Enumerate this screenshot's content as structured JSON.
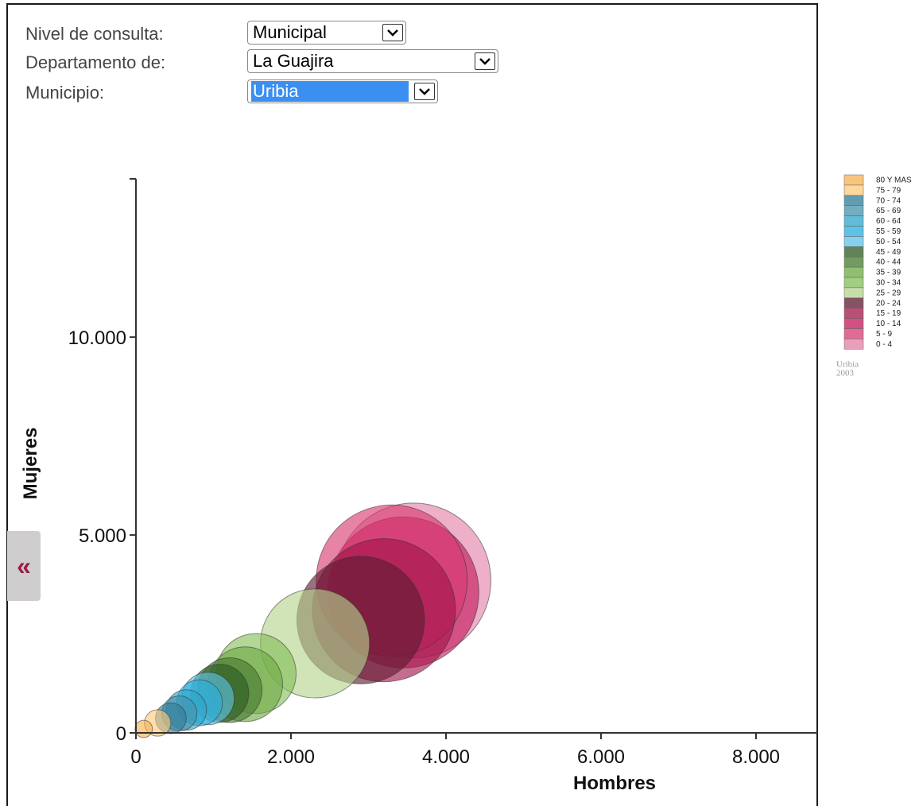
{
  "form": {
    "nivel_label": "Nivel de consulta:",
    "nivel_value": "Municipal",
    "departamento_label": "Departamento de:",
    "departamento_value": "La Guajira",
    "municipio_label": "Municipio:",
    "municipio_value": "Uribia"
  },
  "collapse_button_label": "«",
  "chart_data": {
    "type": "scatter",
    "variant": "bubble",
    "xlabel": "Hombres",
    "ylabel": "Mujeres",
    "xlim": [
      0,
      8800
    ],
    "ylim": [
      0,
      14000
    ],
    "x_ticks": [
      0,
      2000,
      4000,
      6000,
      8000
    ],
    "x_tick_labels": [
      "0",
      "2.000",
      "4.000",
      "6.000",
      "8.000"
    ],
    "y_ticks": [
      0,
      5000,
      10000
    ],
    "y_tick_labels": [
      "0",
      "5.000",
      "10.000"
    ],
    "grid": false,
    "legend_position": "right",
    "legend_caption": [
      "Uribia",
      "2003"
    ],
    "series": [
      {
        "name": "80 Y MAS",
        "color": "#f7b251",
        "x": 100,
        "y": 100,
        "size": 130
      },
      {
        "name": "75 - 79",
        "color": "#fcc979",
        "x": 280,
        "y": 250,
        "size": 300
      },
      {
        "name": "70 - 74",
        "color": "#2f7b96",
        "x": 450,
        "y": 370,
        "size": 410
      },
      {
        "name": "65 - 69",
        "color": "#4392ab",
        "x": 560,
        "y": 490,
        "size": 530
      },
      {
        "name": "60 - 64",
        "color": "#2ea5c9",
        "x": 650,
        "y": 580,
        "size": 700
      },
      {
        "name": "55 - 59",
        "color": "#27aedf",
        "x": 820,
        "y": 760,
        "size": 900
      },
      {
        "name": "50 - 54",
        "color": "#5cc3e8",
        "x": 930,
        "y": 870,
        "size": 1180
      },
      {
        "name": "45 - 49",
        "color": "#2d5a23",
        "x": 1080,
        "y": 1000,
        "size": 1450
      },
      {
        "name": "40 - 44",
        "color": "#44782e",
        "x": 1210,
        "y": 1080,
        "size": 1800
      },
      {
        "name": "35 - 39",
        "color": "#6da843",
        "x": 1410,
        "y": 1230,
        "size": 2400
      },
      {
        "name": "30 - 34",
        "color": "#82be55",
        "x": 1550,
        "y": 1500,
        "size": 2750
      },
      {
        "name": "25 - 29",
        "color": "#b3d48c",
        "x": 2310,
        "y": 2260,
        "size": 5100
      },
      {
        "name": "20 - 24",
        "color": "#5e1a31",
        "x": 2900,
        "y": 2850,
        "size": 7000
      },
      {
        "name": "15 - 19",
        "color": "#a1134a",
        "x": 3200,
        "y": 3100,
        "size": 8800
      },
      {
        "name": "10 - 14",
        "color": "#c3165a",
        "x": 3450,
        "y": 3550,
        "size": 9800
      },
      {
        "name": "5 - 9",
        "color": "#d8396f",
        "x": 3300,
        "y": 3850,
        "size": 9800
      },
      {
        "name": "0 - 4",
        "color": "#e27fa6",
        "x": 3580,
        "y": 3850,
        "size": 10300
      }
    ]
  }
}
